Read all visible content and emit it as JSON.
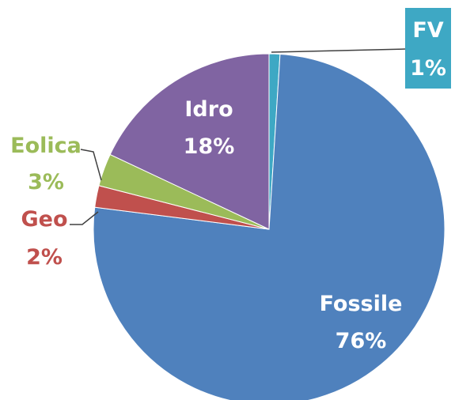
{
  "chart_data": {
    "type": "pie",
    "title": "",
    "legend": "none",
    "slices": [
      {
        "name": "FV",
        "value": 1,
        "label": "1%",
        "color": "#3ea8c4"
      },
      {
        "name": "Fossile",
        "value": 76,
        "label": "76%",
        "color": "#4f81bd"
      },
      {
        "name": "Geo",
        "value": 2,
        "label": "2%",
        "color": "#c0504d"
      },
      {
        "name": "Eolica",
        "value": 3,
        "label": "3%",
        "color": "#9bbb59"
      },
      {
        "name": "Idro",
        "value": 18,
        "label": "18%",
        "color": "#8064a2"
      }
    ],
    "label_colors": {
      "Fossile": "#ffffff",
      "Idro": "#ffffff",
      "Eolica": "#9bbb59",
      "Geo": "#c0504d",
      "FV": "#ffffff"
    },
    "fv_label_box_color": "#3ea8c4"
  }
}
